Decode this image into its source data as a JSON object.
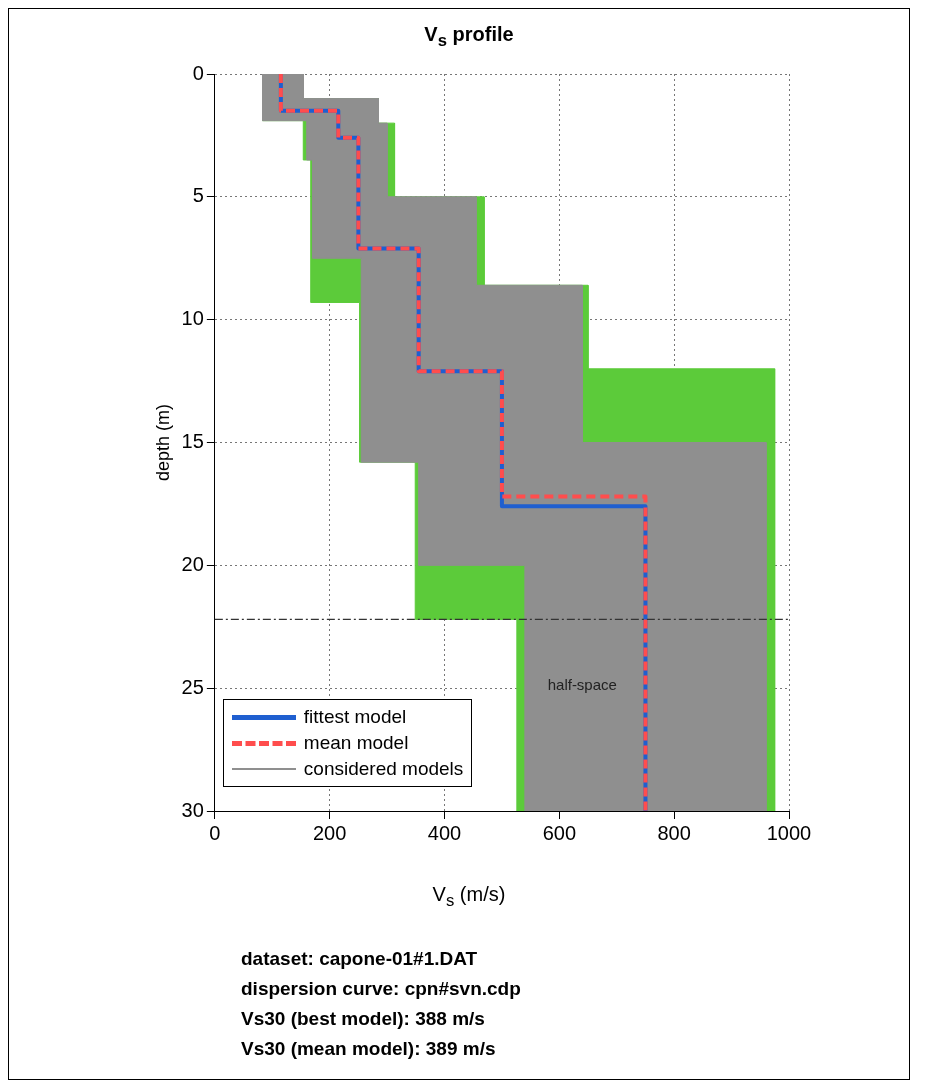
{
  "chart_data": {
    "type": "line",
    "title": "V$_{s}$ profile",
    "xlabel": "V$_{s}$ (m/s)",
    "ylabel": "depth (m)",
    "xlim": [
      0,
      1000
    ],
    "xticks": [
      0,
      200,
      400,
      600,
      800,
      {
        "value": 1000,
        "label": "1000"
      }
    ],
    "ylim": [
      30,
      0
    ],
    "yticks": [
      0,
      5,
      10,
      15,
      20,
      25,
      30
    ],
    "grid": true,
    "legend": "bottom left",
    "series": [
      {
        "name": "fittest model",
        "color": "#1f5fd0",
        "line_style": "solid",
        "x": [
          115,
          115,
          215,
          215,
          250,
          250,
          355,
          355,
          500,
          500,
          750,
          750
        ],
        "values": [
          0,
          1.5,
          1.5,
          2.6,
          2.6,
          7.1,
          7.1,
          12.1,
          12.1,
          17.6,
          17.6,
          30
        ]
      },
      {
        "name": "mean model",
        "color": "#ff4d4d",
        "line_style": "dashed",
        "x": [
          115,
          115,
          215,
          215,
          250,
          250,
          355,
          355,
          500,
          500,
          750,
          750
        ],
        "values": [
          0,
          1.5,
          1.5,
          2.6,
          2.6,
          7.1,
          7.1,
          12.1,
          12.1,
          17.2,
          17.2,
          30
        ]
      },
      {
        "type": "area",
        "color": "#5ccb3a",
        "x": [
          83,
          154,
          154,
          285,
          285,
          313,
          313,
          469,
          469,
          650,
          650,
          975,
          975,
          526,
          526,
          349,
          349,
          252,
          252,
          167,
          167,
          154,
          154,
          83,
          83
        ],
        "values": [
          0,
          0,
          1,
          1,
          2,
          2,
          5,
          5,
          8.6,
          8.6,
          12,
          12,
          30,
          30,
          22.2,
          22.2,
          15.8,
          15.8,
          9.3,
          9.3,
          3.5,
          3.5,
          1.9,
          1.9,
          0
        ]
      },
      {
        "type": "area",
        "name": "considered models",
        "color": "#8f8f8f",
        "x": [
          83,
          154,
          154,
          285,
          285,
          300,
          300,
          455,
          455,
          640,
          640,
          960,
          960,
          540,
          540,
          355,
          355,
          255,
          255,
          170,
          170,
          160,
          160,
          83,
          83
        ],
        "values": [
          0,
          0,
          1,
          1,
          2,
          2,
          5,
          5,
          8.6,
          8.6,
          15,
          15,
          30,
          30,
          20,
          20,
          15.8,
          15.8,
          7.5,
          7.5,
          3.5,
          3.5,
          1.9,
          1.9,
          0
        ]
      }
    ],
    "ref_lines": [
      {
        "axis": "y",
        "value": 22.2,
        "color": "#333333",
        "line_style": "dashed"
      }
    ],
    "annotations": [
      "half-space",
      "dataset: capone-01#1.DAT",
      "dispersion curve: cpn#svn.cdp",
      "Vs30 (best model): 388 m/s",
      "Vs30 (mean model): 389 m/s"
    ]
  }
}
